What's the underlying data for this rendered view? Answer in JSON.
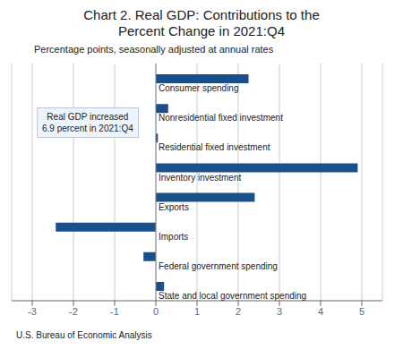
{
  "chart_data": {
    "type": "bar",
    "orientation": "horizontal",
    "title": "Chart 2. Real GDP: Contributions to the\nPercent Change in 2021:Q4",
    "subtitle": "Percentage points, seasonally adjusted at annual rates",
    "footer": "U.S. Bureau of Economic Analysis",
    "categories": [
      "Consumer spending",
      "Nonresidential fixed investment",
      "Residential fixed investment",
      "Inventory investment",
      "Exports",
      "Imports",
      "Federal government spending",
      "State and local government spending"
    ],
    "values": [
      2.25,
      0.3,
      0.05,
      4.9,
      2.4,
      -2.43,
      -0.3,
      0.2
    ],
    "color": "#1b4f8a",
    "xlim": [
      -3.5,
      5.5
    ],
    "xticks": [
      -3,
      -2,
      -1,
      0,
      1,
      2,
      3,
      4,
      5
    ],
    "grid": true,
    "tick_labels": "x",
    "annotations": [
      "Real GDP increased\n6.9 percent in 2021:Q4"
    ]
  }
}
